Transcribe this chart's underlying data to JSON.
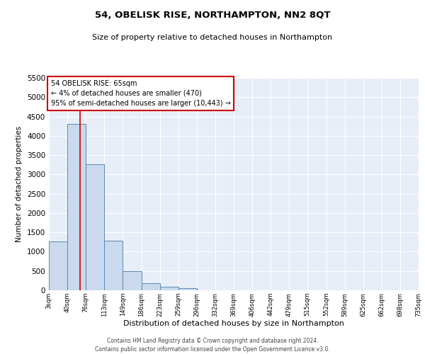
{
  "title": "54, OBELISK RISE, NORTHAMPTON, NN2 8QT",
  "subtitle": "Size of property relative to detached houses in Northampton",
  "xlabel": "Distribution of detached houses by size in Northampton",
  "ylabel": "Number of detached properties",
  "footer_line1": "Contains HM Land Registry data © Crown copyright and database right 2024.",
  "footer_line2": "Contains public sector information licensed under the Open Government Licence v3.0.",
  "annotation_title": "54 OBELISK RISE: 65sqm",
  "annotation_line1": "← 4% of detached houses are smaller (470)",
  "annotation_line2": "95% of semi-detached houses are larger (10,443) →",
  "property_size": 65,
  "bin_edges": [
    3,
    40,
    76,
    113,
    149,
    186,
    223,
    259,
    296,
    332,
    369,
    406,
    442,
    479,
    515,
    552,
    589,
    625,
    662,
    698,
    735
  ],
  "bin_counts": [
    1270,
    4300,
    3270,
    1280,
    490,
    185,
    100,
    60,
    0,
    0,
    0,
    0,
    0,
    0,
    0,
    0,
    0,
    0,
    0,
    0
  ],
  "bar_color": "#cad9ed",
  "bar_edgecolor": "#5a8ab5",
  "red_line_color": "#cc0000",
  "annotation_box_color": "#cc0000",
  "background_color": "#e8eef7",
  "grid_color": "#ffffff",
  "ylim": [
    0,
    5500
  ],
  "yticks": [
    0,
    500,
    1000,
    1500,
    2000,
    2500,
    3000,
    3500,
    4000,
    4500,
    5000,
    5500
  ],
  "title_fontsize": 9.5,
  "subtitle_fontsize": 8,
  "ylabel_fontsize": 7.5,
  "xlabel_fontsize": 8,
  "ytick_fontsize": 7.5,
  "xtick_fontsize": 6,
  "annotation_fontsize": 7,
  "footer_fontsize": 5.5
}
